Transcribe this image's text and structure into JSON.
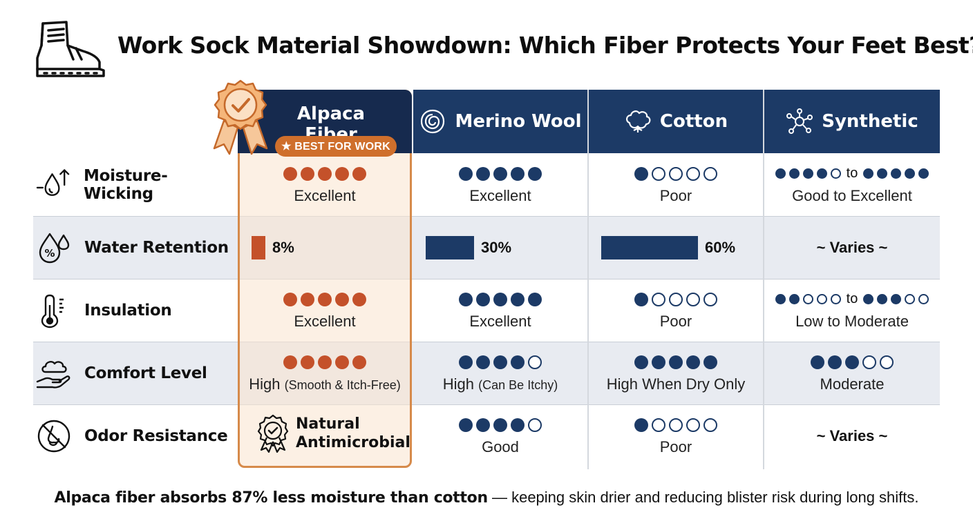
{
  "title": "Work Sock Material Showdown: Which Fiber Protects Your Feet Best?",
  "columns": [
    {
      "name": "Alpaca Fiber",
      "badge": "★ BEST FOR WORK",
      "icon": "award-medal-icon"
    },
    {
      "name": "Merino Wool",
      "icon": "wool-icon"
    },
    {
      "name": "Cotton",
      "icon": "cotton-icon"
    },
    {
      "name": "Synthetic",
      "icon": "molecule-icon"
    }
  ],
  "rows": [
    {
      "label": "Moisture-Wicking",
      "icon": "droplet-arrow-icon",
      "cells": [
        {
          "rating": 5,
          "text": "Excellent"
        },
        {
          "rating": 5,
          "text": "Excellent"
        },
        {
          "rating": 1,
          "text": "Poor"
        },
        {
          "rating_from": 4,
          "rating_to": 5,
          "to_label": "to",
          "text": "Good to Excellent"
        }
      ]
    },
    {
      "label": "Water Retention",
      "icon": "water-percent-icon",
      "cells": [
        {
          "percent": 8,
          "text": "8%"
        },
        {
          "percent": 30,
          "text": "30%"
        },
        {
          "percent": 60,
          "text": "60%"
        },
        {
          "text": "~ Varies ~"
        }
      ]
    },
    {
      "label": "Insulation",
      "icon": "thermometer-icon",
      "cells": [
        {
          "rating": 5,
          "text": "Excellent"
        },
        {
          "rating": 5,
          "text": "Excellent"
        },
        {
          "rating": 1,
          "text": "Poor"
        },
        {
          "rating_from": 2,
          "rating_to": 3,
          "to_label": "to",
          "text": "Low to Moderate"
        }
      ]
    },
    {
      "label": "Comfort Level",
      "icon": "cloud-hand-icon",
      "cells": [
        {
          "rating": 5,
          "text_main": "High",
          "text_sub": "(Smooth & Itch-Free)"
        },
        {
          "rating": 4,
          "text_main": "High",
          "text_sub": "(Can Be Itchy)"
        },
        {
          "rating": 5,
          "text": "High When Dry Only"
        },
        {
          "rating": 3,
          "text": "Moderate"
        }
      ]
    },
    {
      "label": "Odor Resistance",
      "icon": "no-odor-icon",
      "cells": [
        {
          "text_line1": "Natural",
          "text_line2": "Antimicrobial",
          "icon": "award-seal-icon"
        },
        {
          "rating": 4,
          "text": "Good"
        },
        {
          "rating": 1,
          "text": "Poor"
        },
        {
          "text": "~ Varies ~"
        }
      ]
    }
  ],
  "footer": {
    "bold": "Alpaca fiber absorbs 87% less moisture than cotton",
    "rest": " — keeping skin drier and reducing blister risk during long shifts."
  },
  "colors": {
    "navy": "#1c3a66",
    "header_dark": "#162a4e",
    "orange": "#c4512a",
    "badge": "#cf6f2c",
    "panel_border": "#d68a4a"
  }
}
